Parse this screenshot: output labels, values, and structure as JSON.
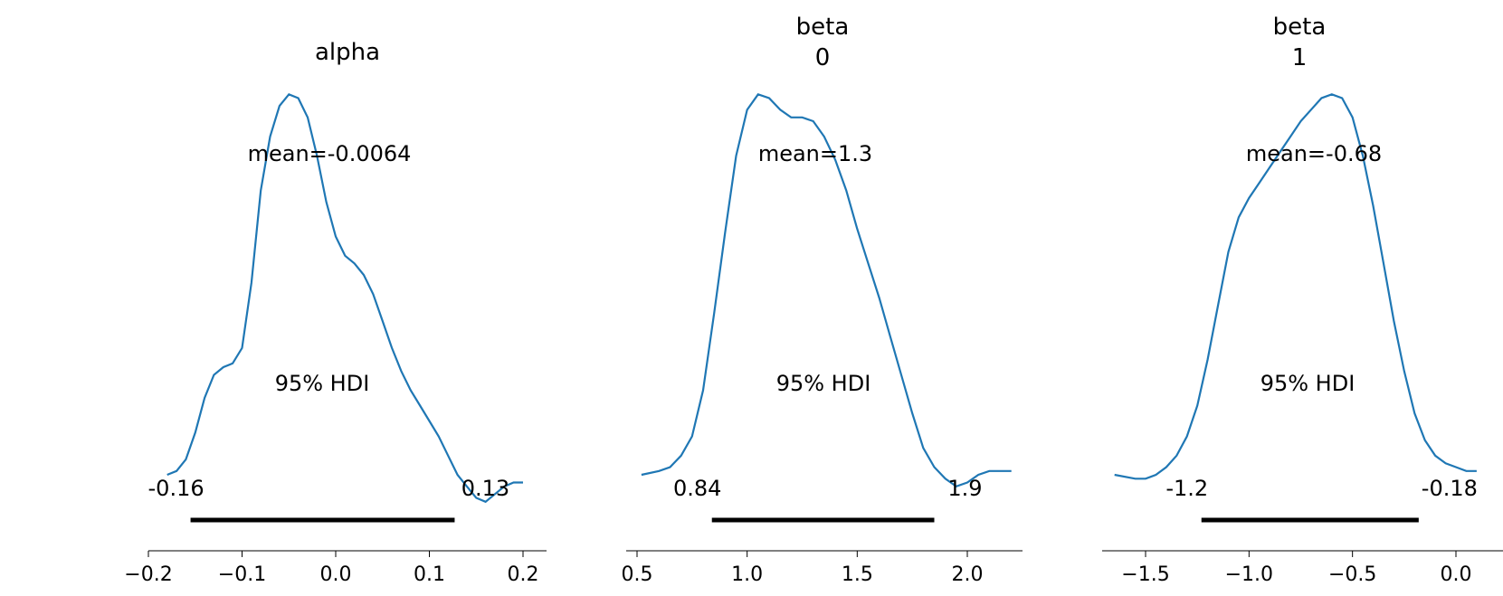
{
  "chart_data": [
    {
      "type": "area",
      "title": "alpha",
      "subtitle": "",
      "xlabel": "",
      "ylabel": "",
      "xlim": [
        -0.2,
        0.2
      ],
      "xticks": [
        -0.2,
        -0.1,
        0.0,
        0.1,
        0.2
      ],
      "xtick_labels": [
        "−0.2",
        "−0.1",
        "0.0",
        "0.1",
        "0.2"
      ],
      "mean_label": "mean=-0.0064",
      "hdi_label": "95% HDI",
      "hdi": [
        -0.155,
        0.127
      ],
      "hdi_low_label": "-0.16",
      "hdi_high_label": "0.13",
      "density": {
        "x": [
          -0.18,
          -0.17,
          -0.16,
          -0.15,
          -0.14,
          -0.13,
          -0.12,
          -0.11,
          -0.1,
          -0.09,
          -0.08,
          -0.07,
          -0.06,
          -0.05,
          -0.04,
          -0.03,
          -0.02,
          -0.01,
          0.0,
          0.01,
          0.02,
          0.03,
          0.04,
          0.05,
          0.06,
          0.07,
          0.08,
          0.09,
          0.1,
          0.11,
          0.12,
          0.13,
          0.14,
          0.15,
          0.16,
          0.17,
          0.18,
          0.19,
          0.2
        ],
        "y": [
          0.0,
          0.01,
          0.04,
          0.11,
          0.2,
          0.26,
          0.28,
          0.29,
          0.33,
          0.5,
          0.74,
          0.88,
          0.96,
          0.99,
          0.98,
          0.93,
          0.83,
          0.71,
          0.62,
          0.57,
          0.55,
          0.52,
          0.47,
          0.4,
          0.33,
          0.27,
          0.22,
          0.18,
          0.14,
          0.1,
          0.05,
          0.0,
          -0.03,
          -0.06,
          -0.07,
          -0.05,
          -0.03,
          -0.02,
          -0.02
        ]
      }
    },
    {
      "type": "area",
      "title": "beta",
      "subtitle": "0",
      "xlabel": "",
      "ylabel": "",
      "xlim": [
        0.5,
        2.2
      ],
      "xticks": [
        0.5,
        1.0,
        1.5,
        2.0
      ],
      "xtick_labels": [
        "0.5",
        "1.0",
        "1.5",
        "2.0"
      ],
      "mean_label": "mean=1.3",
      "hdi_label": "95% HDI",
      "hdi": [
        0.84,
        1.85
      ],
      "hdi_low_label": "0.84",
      "hdi_high_label": "1.9",
      "density": {
        "x": [
          0.52,
          0.6,
          0.65,
          0.7,
          0.75,
          0.8,
          0.85,
          0.9,
          0.95,
          1.0,
          1.05,
          1.1,
          1.15,
          1.2,
          1.25,
          1.3,
          1.35,
          1.4,
          1.45,
          1.5,
          1.55,
          1.6,
          1.65,
          1.7,
          1.75,
          1.8,
          1.85,
          1.9,
          1.95,
          2.0,
          2.05,
          2.1,
          2.15,
          2.2
        ],
        "y": [
          0.0,
          0.01,
          0.02,
          0.05,
          0.1,
          0.22,
          0.42,
          0.63,
          0.83,
          0.95,
          0.99,
          0.98,
          0.95,
          0.93,
          0.93,
          0.92,
          0.88,
          0.82,
          0.74,
          0.64,
          0.55,
          0.46,
          0.36,
          0.26,
          0.16,
          0.07,
          0.02,
          -0.01,
          -0.03,
          -0.02,
          0.0,
          0.01,
          0.01,
          0.01
        ]
      }
    },
    {
      "type": "area",
      "title": "beta",
      "subtitle": "1",
      "xlabel": "",
      "ylabel": "",
      "xlim": [
        -1.65,
        0.1
      ],
      "xticks": [
        -1.5,
        -1.0,
        -0.5,
        0.0
      ],
      "xtick_labels": [
        "−1.5",
        "−1.0",
        "−0.5",
        "0.0"
      ],
      "mean_label": "mean=-0.68",
      "hdi_label": "95% HDI",
      "hdi": [
        -1.23,
        -0.18
      ],
      "hdi_low_label": "-1.2",
      "hdi_high_label": "-0.18",
      "density": {
        "x": [
          -1.65,
          -1.55,
          -1.5,
          -1.45,
          -1.4,
          -1.35,
          -1.3,
          -1.25,
          -1.2,
          -1.15,
          -1.1,
          -1.05,
          -1.0,
          -0.95,
          -0.9,
          -0.85,
          -0.8,
          -0.75,
          -0.7,
          -0.65,
          -0.6,
          -0.55,
          -0.5,
          -0.45,
          -0.4,
          -0.35,
          -0.3,
          -0.25,
          -0.2,
          -0.15,
          -0.1,
          -0.05,
          0.0,
          0.05,
          0.1
        ],
        "y": [
          0.0,
          -0.01,
          -0.01,
          0.0,
          0.02,
          0.05,
          0.1,
          0.18,
          0.3,
          0.44,
          0.58,
          0.67,
          0.72,
          0.76,
          0.8,
          0.84,
          0.88,
          0.92,
          0.95,
          0.98,
          0.99,
          0.98,
          0.93,
          0.83,
          0.7,
          0.55,
          0.4,
          0.27,
          0.16,
          0.09,
          0.05,
          0.03,
          0.02,
          0.01,
          0.01
        ]
      }
    }
  ],
  "colors": {
    "density_line": "#1f77b4",
    "hdi_bar": "#000000",
    "axis": "#000000"
  }
}
